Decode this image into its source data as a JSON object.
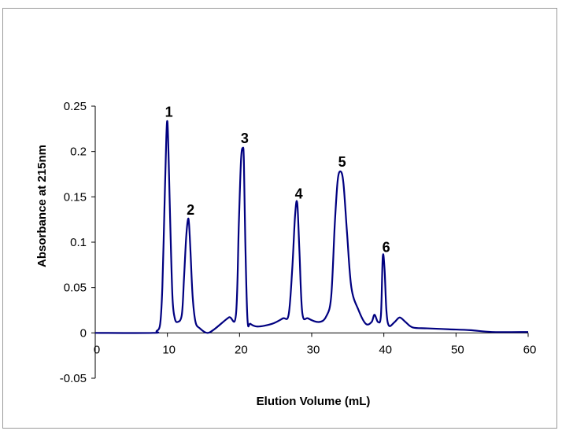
{
  "chart_data": {
    "type": "line",
    "title": "",
    "xlabel": "Elution Volume (mL)",
    "ylabel": "Absorbance at 215nm",
    "xlim": [
      0,
      60
    ],
    "ylim": [
      -0.05,
      0.25
    ],
    "xticks": [
      "0",
      "10",
      "20",
      "30",
      "40",
      "50",
      "60"
    ],
    "yticks": [
      "0.25",
      "0.2",
      "0.15",
      "0.1",
      "0.05",
      "0",
      "-0.05"
    ],
    "grid": false,
    "legend": "none",
    "line_color": "#000080",
    "series": [
      {
        "x": [
          0,
          8,
          8.5,
          9,
          9.3,
          9.6,
          9.85,
          10,
          10.15,
          10.4,
          10.7,
          11,
          11.4,
          12,
          12.3,
          12.6,
          12.85,
          13,
          13.2,
          13.5,
          13.9,
          14.5,
          15.5,
          16.5,
          18.5,
          19.5,
          19.9,
          20.2,
          20.45,
          20.6,
          20.8,
          21.1,
          21.5,
          22.5,
          24.5,
          26,
          26.8,
          27.3,
          27.7,
          28,
          28.3,
          28.7,
          29.5,
          31,
          32,
          32.7,
          33.2,
          33.6,
          34,
          34.4,
          34.9,
          35.5,
          36.5,
          37.5,
          38.3,
          38.7,
          39.2,
          39.6,
          39.85,
          40.1,
          40.35,
          40.7,
          41.5,
          42.2,
          43,
          44,
          46,
          49,
          52,
          55,
          60
        ],
        "y": [
          0,
          0,
          0.002,
          0.01,
          0.05,
          0.14,
          0.215,
          0.233,
          0.2,
          0.12,
          0.04,
          0.017,
          0.012,
          0.02,
          0.06,
          0.105,
          0.125,
          0.12,
          0.09,
          0.04,
          0.012,
          0.005,
          0,
          0.004,
          0.017,
          0.02,
          0.12,
          0.19,
          0.204,
          0.19,
          0.1,
          0.015,
          0.01,
          0.007,
          0.01,
          0.016,
          0.02,
          0.07,
          0.13,
          0.143,
          0.09,
          0.022,
          0.016,
          0.012,
          0.018,
          0.04,
          0.12,
          0.168,
          0.178,
          0.165,
          0.11,
          0.05,
          0.025,
          0.01,
          0.012,
          0.02,
          0.012,
          0.02,
          0.084,
          0.07,
          0.025,
          0.008,
          0.012,
          0.017,
          0.012,
          0.006,
          0.005,
          0.004,
          0.003,
          0.001,
          0.001
        ]
      }
    ],
    "annotations": [
      {
        "text": "1",
        "x": 10,
        "y": 0.233
      },
      {
        "text": "2",
        "x": 13,
        "y": 0.125
      },
      {
        "text": "3",
        "x": 20.5,
        "y": 0.204
      },
      {
        "text": "4",
        "x": 28,
        "y": 0.143
      },
      {
        "text": "5",
        "x": 34,
        "y": 0.178
      },
      {
        "text": "6",
        "x": 40.1,
        "y": 0.084
      }
    ]
  }
}
